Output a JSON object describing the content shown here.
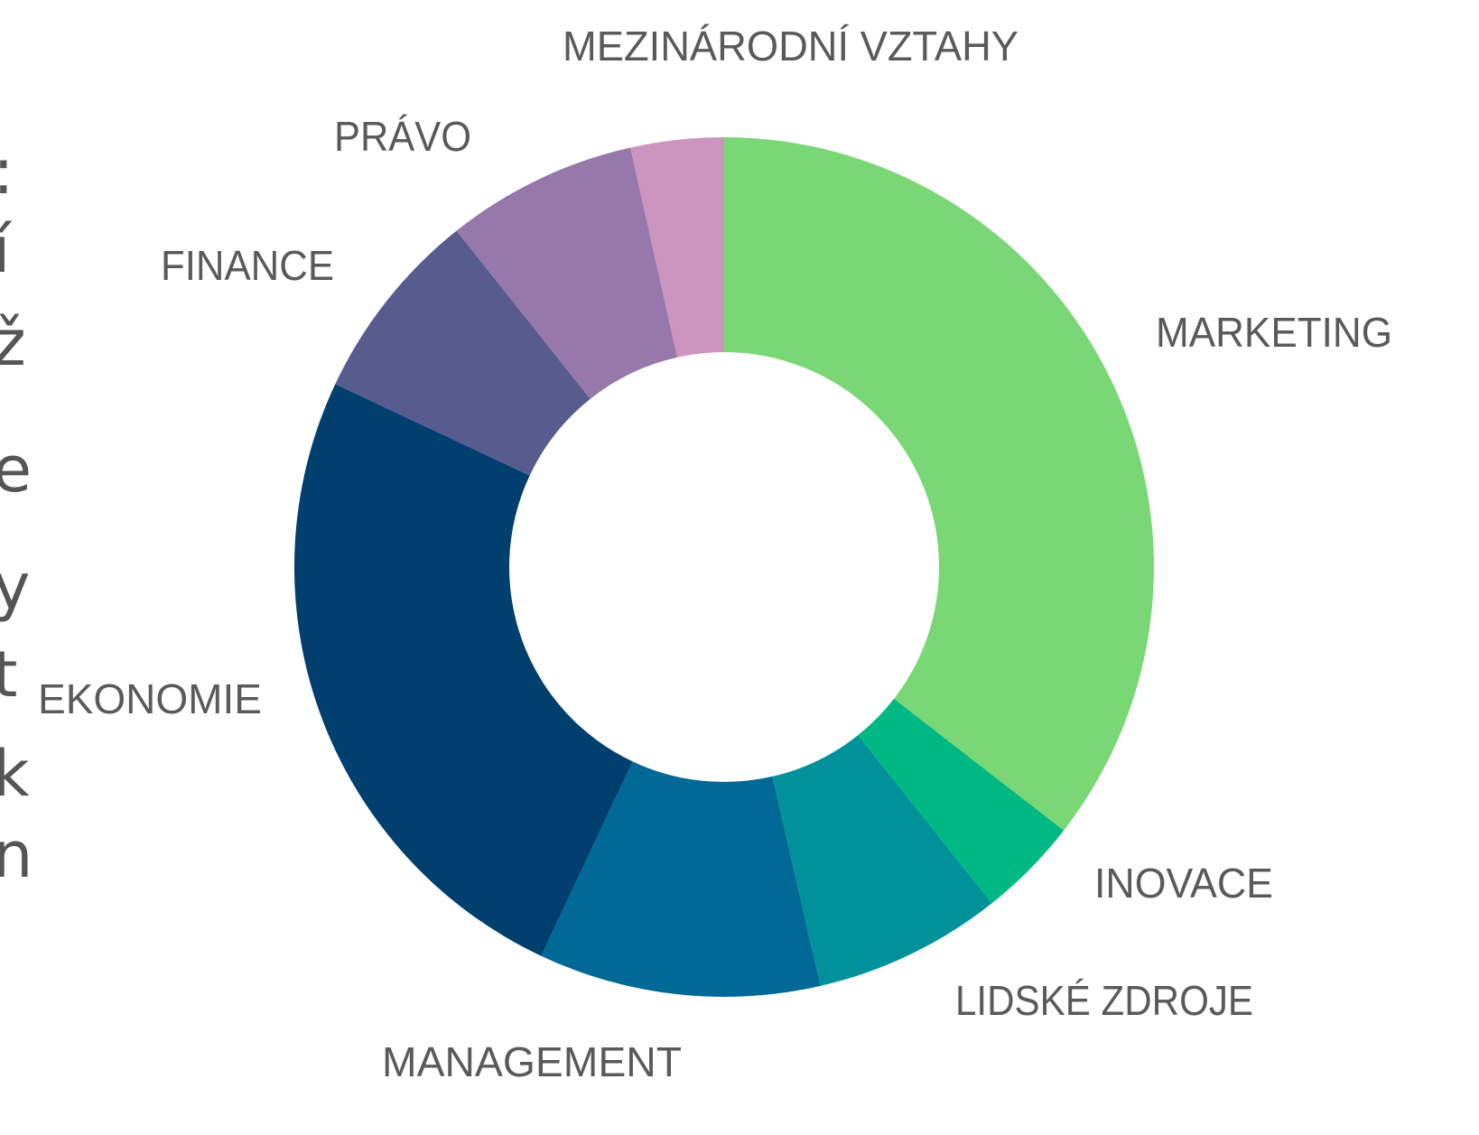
{
  "chart_data": {
    "type": "donut",
    "categories": [
      "MARKETING",
      "INOVACE",
      "LIDSKÉ ZDROJE",
      "MANAGEMENT",
      "EKONOMIE",
      "FINANCE",
      "PRÁVO",
      "MEZINÁRODNÍ VZTAHY"
    ],
    "values": [
      35.5,
      3.8,
      7.1,
      10.6,
      25.0,
      7.3,
      7.2,
      3.5
    ],
    "colors": [
      "#7ad776",
      "#00b884",
      "#00919a",
      "#006996",
      "#003f6e",
      "#575b8e",
      "#9678aa",
      "#cb95c0"
    ]
  },
  "side_text": [
    ":",
    "í",
    "ž",
    "e",
    "y",
    "t",
    "k",
    "n"
  ]
}
